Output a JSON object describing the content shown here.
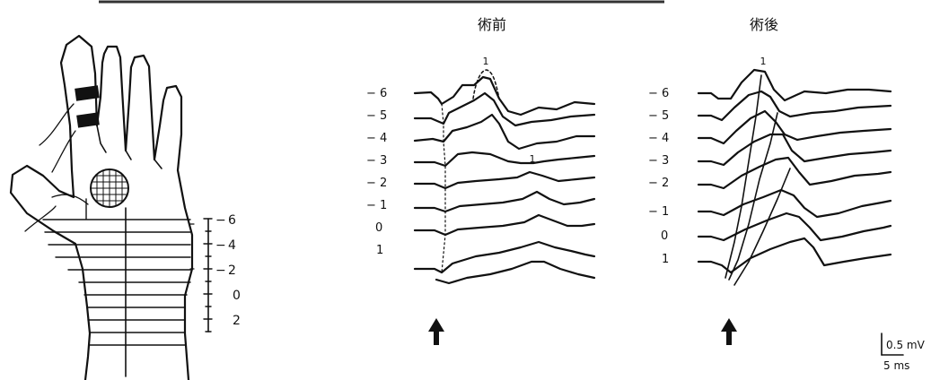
{
  "hand_scale": {
    "labels": [
      "6",
      "4",
      "2",
      "0",
      "2"
    ],
    "prefix": [
      "−",
      "−",
      "−",
      "",
      ""
    ]
  },
  "panels": [
    {
      "id": "pre",
      "title": "術前",
      "trace_labels": [
        "− 6",
        "− 5",
        "− 4",
        "− 3",
        "− 2",
        "− 1",
        "0",
        "1"
      ],
      "peak_marks": [
        "1",
        "1"
      ]
    },
    {
      "id": "post",
      "title": "術後",
      "trace_labels": [
        "− 6",
        "− 5",
        "− 4",
        "− 3",
        "− 2",
        "− 1",
        "0",
        "1"
      ],
      "peak_marks": [
        "1"
      ]
    }
  ],
  "scale_bar": {
    "amplitude": "0.5 mV",
    "time": "5 ms"
  },
  "stimulus_markers": [
    "up-arrow-icon",
    "up-arrow-icon"
  ]
}
